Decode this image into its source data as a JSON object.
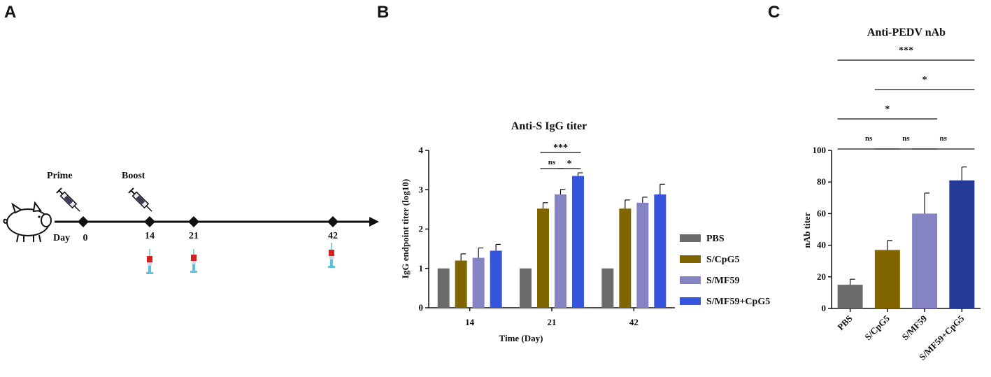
{
  "panels": {
    "a": "A",
    "b": "B",
    "c": "C"
  },
  "timeline": {
    "prime_label": "Prime",
    "boost_label": "Boost",
    "day_label": "Day",
    "days": [
      "0",
      "14",
      "21",
      "42"
    ]
  },
  "colors": {
    "PBS": "#6b6b6b",
    "S/CpG5": "#806500",
    "S/MF59": "#8583c4",
    "S/MF59+CpG5": "#3555df",
    "S/MF59+CpG5_nAb": "#243a98"
  },
  "chart_data": [
    {
      "type": "bar",
      "title": "Anti-S IgG titer",
      "xlabel": "Time (Day)",
      "ylabel": "IgG endpoint titer (log10)",
      "ylim": [
        0,
        4
      ],
      "yticks": [
        "0",
        "1",
        "2",
        "3",
        "4"
      ],
      "categories": [
        "14",
        "21",
        "42"
      ],
      "series": [
        {
          "name": "PBS",
          "values": [
            1.0,
            1.0,
            1.0
          ],
          "errors": [
            0,
            0,
            0
          ]
        },
        {
          "name": "S/CpG5",
          "values": [
            1.2,
            2.52,
            2.52
          ],
          "errors": [
            0.17,
            0.15,
            0.22
          ]
        },
        {
          "name": "S/MF59",
          "values": [
            1.27,
            2.88,
            2.67
          ],
          "errors": [
            0.25,
            0.13,
            0.14
          ]
        },
        {
          "name": "S/MF59+CpG5",
          "values": [
            1.45,
            3.35,
            2.88
          ],
          "errors": [
            0.16,
            0.08,
            0.26
          ]
        }
      ],
      "legend_position": "right",
      "significance": [
        {
          "category": "21",
          "from": 1,
          "to": 3,
          "label": "***"
        },
        {
          "category": "21",
          "from": 1,
          "to": 2,
          "label": "ns"
        },
        {
          "category": "21",
          "from": 2,
          "to": 3,
          "label": "*"
        }
      ]
    },
    {
      "type": "bar",
      "title": "Anti-PEDV nAb",
      "ylabel": "nAb titer",
      "ylim": [
        0,
        100
      ],
      "yticks": [
        "0",
        "20",
        "40",
        "60",
        "80",
        "100"
      ],
      "categories": [
        "PBS",
        "S/CpG5",
        "S/MF59",
        "S/MF59+CpG5"
      ],
      "values": [
        15,
        37,
        60,
        81
      ],
      "errors": [
        3.5,
        6,
        13,
        8.5
      ],
      "significance": [
        {
          "from": 0,
          "to": 3,
          "label": "***"
        },
        {
          "from": 1,
          "to": 3,
          "label": "*"
        },
        {
          "from": 0,
          "to": 2,
          "label": "*"
        },
        {
          "from": 0,
          "to": 1,
          "label": "ns"
        },
        {
          "from": 1,
          "to": 2,
          "label": "ns"
        },
        {
          "from": 2,
          "to": 3,
          "label": "ns"
        }
      ]
    }
  ]
}
